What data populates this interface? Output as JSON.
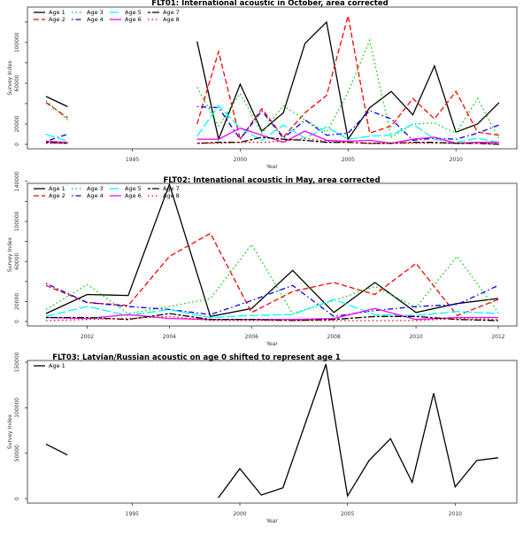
{
  "chart_data": [
    {
      "type": "line",
      "title": "FLT01:       International acoustic in October, area corrected",
      "xlabel": "Year",
      "ylabel": "Survey Index",
      "xlim": [
        1991,
        2012
      ],
      "ylim": [
        0,
        126000
      ],
      "xticks": [
        1995,
        2000,
        2005,
        2010
      ],
      "yticks": [
        0,
        20000,
        40000,
        60000,
        80000,
        100000,
        120000
      ],
      "ytick_labels": [
        "0",
        "20000",
        "",
        "60000",
        "",
        "100000",
        ""
      ],
      "legend_position": "top-left",
      "x": [
        1991,
        1992,
        1993,
        1994,
        1995,
        1996,
        1997,
        1998,
        1999,
        2000,
        2001,
        2002,
        2003,
        2004,
        2005,
        2006,
        2007,
        2008,
        2009,
        2010,
        2011,
        2012
      ],
      "series": [
        {
          "name": "Age 1",
          "color": "#000000",
          "dash": "solid",
          "values": [
            47000,
            37000,
            null,
            null,
            null,
            null,
            null,
            101000,
            5000,
            59000,
            13000,
            31000,
            99000,
            120000,
            5000,
            36000,
            52000,
            29000,
            77000,
            12000,
            20000,
            41000
          ]
        },
        {
          "name": "Age 2",
          "color": "#ff0000",
          "dash": "dashed",
          "values": [
            41000,
            26000,
            null,
            null,
            null,
            null,
            null,
            20000,
            91000,
            5000,
            35000,
            7000,
            31000,
            48000,
            126000,
            11000,
            18000,
            45000,
            25000,
            52000,
            12000,
            9000
          ]
        },
        {
          "name": "Age 3",
          "color": "#00cc00",
          "dash": "dotted",
          "values": [
            43000,
            24000,
            null,
            null,
            null,
            null,
            null,
            56000,
            18000,
            50000,
            11000,
            38000,
            24000,
            12000,
            51000,
            102000,
            7000,
            20000,
            21000,
            11000,
            45000,
            5000
          ]
        },
        {
          "name": "Age 4",
          "color": "#0000ff",
          "dash": "dotdash",
          "values": [
            3000,
            10000,
            null,
            null,
            null,
            null,
            null,
            37000,
            36000,
            5000,
            33000,
            6000,
            24000,
            9000,
            11000,
            33000,
            25000,
            4000,
            6000,
            5000,
            11000,
            19000
          ]
        },
        {
          "name": "Age 5",
          "color": "#00ffff",
          "dash": "longdash",
          "values": [
            10000,
            3000,
            null,
            null,
            null,
            null,
            null,
            8000,
            38000,
            16000,
            4000,
            19000,
            6000,
            17000,
            5000,
            8000,
            9000,
            20000,
            5000,
            2000,
            6000,
            2000
          ]
        },
        {
          "name": "Age 6",
          "color": "#ff00ff",
          "dash": "solid",
          "values": [
            3000,
            2000,
            null,
            null,
            null,
            null,
            null,
            5000,
            5000,
            16000,
            9000,
            2000,
            13000,
            4000,
            3000,
            4000,
            1000,
            5000,
            7000,
            1000,
            2000,
            2000
          ]
        },
        {
          "name": "Age 7",
          "color": "#000000",
          "dash": "twodash",
          "values": [
            2000,
            1000,
            null,
            null,
            null,
            null,
            null,
            1000,
            2000,
            2000,
            7000,
            5000,
            4000,
            2000,
            2000,
            1000,
            1000,
            2000,
            2000,
            1000,
            1000,
            0
          ]
        },
        {
          "name": "Age 8",
          "color": "#ff0000",
          "dash": "dotted",
          "values": [
            1000,
            1000,
            null,
            null,
            null,
            null,
            null,
            1000,
            1000,
            2000,
            2000,
            3000,
            6000,
            3000,
            2000,
            1000,
            1000,
            1000,
            1000,
            1000,
            1000,
            1000
          ]
        }
      ]
    },
    {
      "type": "line",
      "title": "FLT02: Intenational acoustic in May, area corrected",
      "xlabel": "Year",
      "ylabel": "Survey Index",
      "xlim": [
        2001,
        2012
      ],
      "ylim": [
        0,
        138000
      ],
      "xticks": [
        2002,
        2004,
        2006,
        2008,
        2010,
        2012
      ],
      "yticks": [
        0,
        20000,
        40000,
        60000,
        80000,
        100000,
        120000,
        140000
      ],
      "ytick_labels": [
        "0",
        "20000",
        "",
        "60000",
        "",
        "100000",
        "",
        "140000"
      ],
      "legend_position": "top-left",
      "x": [
        2001,
        2002,
        2003,
        2004,
        2005,
        2006,
        2007,
        2008,
        2009,
        2010,
        2011,
        2012
      ],
      "series": [
        {
          "name": "Age 1",
          "color": "#000000",
          "dash": "solid",
          "values": [
            8000,
            27000,
            26000,
            137000,
            5000,
            13000,
            51000,
            9000,
            39000,
            9000,
            18000,
            23000
          ]
        },
        {
          "name": "Age 2",
          "color": "#ff0000",
          "dash": "dashed",
          "values": [
            36000,
            19000,
            16000,
            65000,
            88000,
            9000,
            30000,
            39000,
            27000,
            58000,
            6000,
            22000
          ]
        },
        {
          "name": "Age 3",
          "color": "#00cc00",
          "dash": "dotted",
          "values": [
            12000,
            37000,
            8000,
            15000,
            23000,
            77000,
            8000,
            21000,
            35000,
            14000,
            65000,
            9000
          ]
        },
        {
          "name": "Age 4",
          "color": "#0000ff",
          "dash": "dotdash",
          "values": [
            38000,
            19000,
            15000,
            12000,
            7000,
            21000,
            36000,
            5000,
            11000,
            15000,
            17000,
            36000
          ]
        },
        {
          "name": "Age 5",
          "color": "#00ffff",
          "dash": "longdash",
          "values": [
            5000,
            15000,
            6000,
            12000,
            4000,
            6000,
            7000,
            22000,
            7000,
            6000,
            10000,
            8000
          ]
        },
        {
          "name": "Age 6",
          "color": "#ff00ff",
          "dash": "solid",
          "values": [
            4000,
            3000,
            7000,
            3000,
            2000,
            2000,
            2000,
            3000,
            13000,
            2000,
            4000,
            4000
          ]
        },
        {
          "name": "Age 7",
          "color": "#000000",
          "dash": "twodash",
          "values": [
            4000,
            4000,
            2000,
            8000,
            2000,
            2000,
            1000,
            2000,
            5000,
            5000,
            2000,
            1000
          ]
        },
        {
          "name": "Age 8",
          "color": "#ff0000",
          "dash": "dotted",
          "values": [
            1000,
            2000,
            3000,
            5000,
            1000,
            1000,
            1000,
            1000,
            1000,
            1000,
            3000,
            2000
          ]
        }
      ]
    },
    {
      "type": "line",
      "title": "FLT03: Latvian/Russian acoustic on age 0 shifted to represent age 1",
      "xlabel": "Year",
      "ylabel": "Survey Index",
      "xlim": [
        1991,
        2012
      ],
      "ylim": [
        0,
        150000
      ],
      "xticks": [
        1995,
        2000,
        2005,
        2010
      ],
      "yticks": [
        0,
        50000,
        100000,
        150000
      ],
      "ytick_labels": [
        "0",
        "50000",
        "100000",
        "150000"
      ],
      "legend_position": "top-left",
      "x": [
        1991,
        1992,
        1993,
        1994,
        1995,
        1996,
        1997,
        1998,
        1999,
        2000,
        2001,
        2002,
        2003,
        2004,
        2005,
        2006,
        2007,
        2008,
        2009,
        2010,
        2011,
        2012
      ],
      "series": [
        {
          "name": "Age 1",
          "color": "#000000",
          "dash": "solid",
          "values": [
            60000,
            48000,
            null,
            null,
            null,
            null,
            null,
            null,
            1000,
            33000,
            4000,
            12000,
            80000,
            148000,
            3000,
            42000,
            66000,
            18000,
            116000,
            13000,
            42000,
            45000
          ]
        }
      ]
    }
  ]
}
